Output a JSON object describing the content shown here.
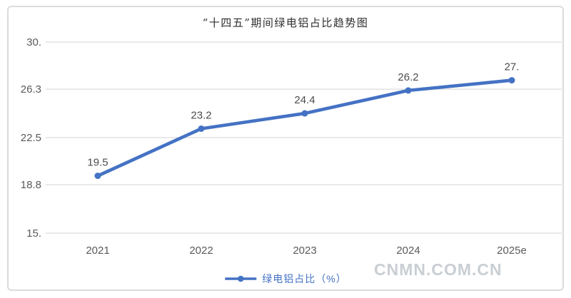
{
  "chart_data": {
    "type": "line",
    "title": "“十四五”期间绿电铝占比趋势图",
    "categories": [
      "2021",
      "2022",
      "2023",
      "2024",
      "2025e"
    ],
    "series": [
      {
        "name": "绿电铝占比（%）",
        "values": [
          19.5,
          23.2,
          24.4,
          26.2,
          27
        ]
      }
    ],
    "data_labels": [
      "19.5",
      "23.2",
      "24.4",
      "26.2",
      "27."
    ],
    "yticks": [
      "30.",
      "26.3",
      "22.5",
      "18.8",
      "15."
    ],
    "ytick_values": [
      30,
      26.3,
      22.5,
      18.8,
      15
    ],
    "ylim": [
      15,
      30
    ],
    "xlabel": "",
    "ylabel": "",
    "grid": "horizontal",
    "legend_position": "bottom-center",
    "line_color": "#4472c4",
    "grid_color": "#dcdcdc"
  },
  "legend": {
    "label": "绿电铝占比（%）"
  },
  "watermark": {
    "text": "CNMN.COM.CN"
  },
  "colors": {
    "accent_blue": "#4472c4",
    "axis_text": "#5a5a5a",
    "frame_border": "#d9dcde",
    "watermark_gray": "#c9ced3",
    "background": "#ffffff"
  }
}
